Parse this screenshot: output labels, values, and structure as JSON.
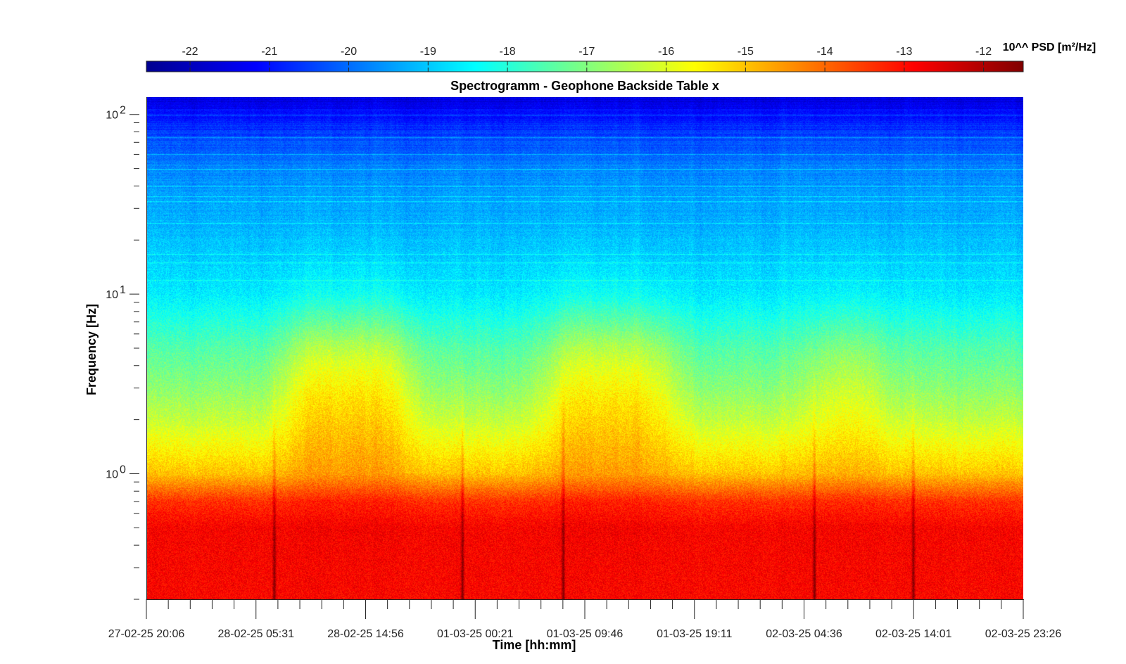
{
  "chart_data": {
    "type": "heatmap",
    "title": "Spectrogramm - Geophone Backside Table x",
    "xlabel": "Time [hh:mm]",
    "ylabel": "Frequency [Hz]",
    "y_scale": "log",
    "ylim_hz": [
      0.2,
      125
    ],
    "y_ticks": [
      {
        "value": 100,
        "base": "10",
        "exp": "2"
      },
      {
        "value": 10,
        "base": "10",
        "exp": "1"
      },
      {
        "value": 1,
        "base": "10",
        "exp": "0"
      }
    ],
    "x_ticks": [
      "27-02-25 20:06",
      "28-02-25 05:31",
      "28-02-25 14:56",
      "01-03-25 00:21",
      "01-03-25 09:46",
      "01-03-25 19:11",
      "02-03-25 04:36",
      "02-03-25 14:01",
      "02-03-25 23:26"
    ],
    "colorbar": {
      "title": "10^^ PSD [m²/Hz]",
      "colormap": "jet",
      "range": [
        -22.55,
        -11.5
      ],
      "ticks": [
        "-22",
        "-21",
        "-20",
        "-19",
        "-18",
        "-17",
        "-16",
        "-15",
        "-14",
        "-13",
        "-12"
      ]
    },
    "psd_profile_log10": [
      {
        "f": 0.2,
        "psd": -12.9
      },
      {
        "f": 0.5,
        "psd": -12.85
      },
      {
        "f": 0.7,
        "psd": -13.4
      },
      {
        "f": 1.0,
        "psd": -15.0
      },
      {
        "f": 2.0,
        "psd": -16.3
      },
      {
        "f": 3.0,
        "psd": -16.9
      },
      {
        "f": 5.0,
        "psd": -17.5
      },
      {
        "f": 10,
        "psd": -18.6
      },
      {
        "f": 20,
        "psd": -19.1
      },
      {
        "f": 50,
        "psd": -19.7
      },
      {
        "f": 100,
        "psd": -21.0
      },
      {
        "f": 125,
        "psd": -21.5
      }
    ],
    "active_periods": [
      {
        "start": 0.16,
        "end": 0.3,
        "boost": 1.4
      },
      {
        "start": 0.46,
        "end": 0.6,
        "boost": 1.3
      },
      {
        "start": 0.76,
        "end": 0.84,
        "boost": 0.7
      }
    ],
    "transients": [
      0.145,
      0.36,
      0.475,
      0.762,
      0.875
    ],
    "line_frequencies_hz": [
      12,
      15,
      16.7,
      25,
      33,
      35,
      40,
      50,
      60,
      75,
      100
    ],
    "colors": {
      "axis": "#262626",
      "background": "#ffffff"
    }
  }
}
